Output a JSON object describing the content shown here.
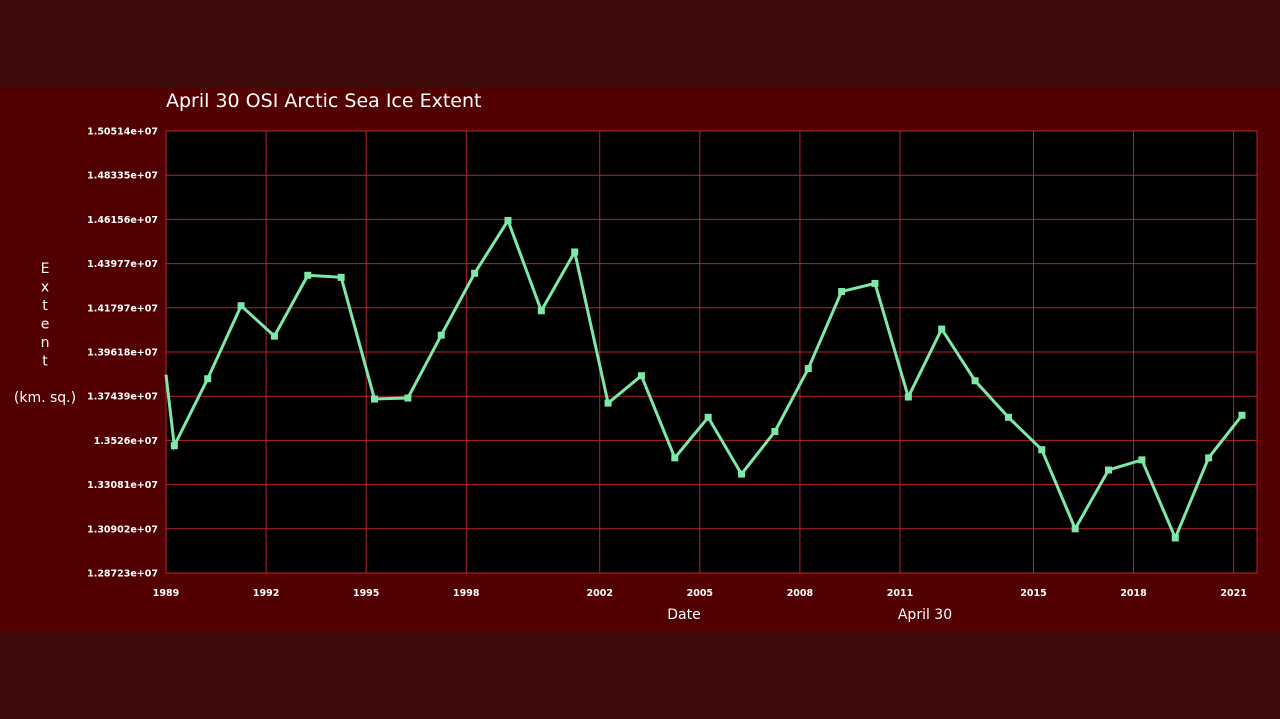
{
  "colors": {
    "page_bg": "#3f0a0c",
    "panel_bg": "#520002",
    "plot_bg": "#000000",
    "grid": "#b5232b",
    "line": "#7de8a8",
    "text": "#ffffff"
  },
  "chart_data": {
    "type": "line",
    "title": "April 30 OSI Arctic Sea Ice Extent",
    "xlabel": "Date",
    "xlabel_secondary": "April 30",
    "ylabel_chars": [
      "E",
      "x",
      "t",
      "e",
      "n",
      "t"
    ],
    "ylabel_unit": "(km. sq.)",
    "xlim": [
      1989,
      2021.7
    ],
    "ylim": [
      12872300,
      15051400
    ],
    "grid": true,
    "x_ticks": [
      1989,
      1992,
      1995,
      1998,
      2002,
      2005,
      2008,
      2011,
      2015,
      2018,
      2021
    ],
    "x_tick_labels": [
      "1989",
      "1992",
      "1995",
      "1998",
      "2002",
      "2005",
      "2008",
      "2011",
      "2015",
      "2018",
      "2021"
    ],
    "y_ticks": [
      12872300,
      13090200,
      13308100,
      13526000,
      13743900,
      13961800,
      14179700,
      14397700,
      14615600,
      14833500,
      15051400
    ],
    "y_tick_labels": [
      "1.28723e+07",
      "1.30902e+07",
      "1.33081e+07",
      "1.3526e+07",
      "1.37439e+07",
      "1.39618e+07",
      "1.41797e+07",
      "1.43977e+07",
      "1.46156e+07",
      "1.48335e+07",
      "1.50514e+07"
    ],
    "series": [
      {
        "x": [
          1989.0,
          1989.25,
          1990.25,
          1991.25,
          1992.25,
          1993.25,
          1994.25,
          1995.25,
          1996.25,
          1997.25,
          1998.25,
          1999.25,
          2000.25,
          2001.25,
          2002.25,
          2003.25,
          2004.25,
          2005.25,
          2006.25,
          2007.25,
          2008.25,
          2009.25,
          2010.25,
          2011.25,
          2012.25,
          2013.25,
          2014.25,
          2015.25,
          2016.25,
          2017.25,
          2018.25,
          2019.25,
          2020.25,
          2021.25
        ],
        "values": [
          13850000,
          13500000,
          13830000,
          14190000,
          14040000,
          14340000,
          14330000,
          13730000,
          13735000,
          14045000,
          14350000,
          14610000,
          14165000,
          14455000,
          13710000,
          13845000,
          13440000,
          13640000,
          13360000,
          13570000,
          13880000,
          14260000,
          14300000,
          13740000,
          14075000,
          13820000,
          13640000,
          13480000,
          13090000,
          13380000,
          13430000,
          13045000,
          13440000,
          13650000
        ]
      }
    ]
  }
}
